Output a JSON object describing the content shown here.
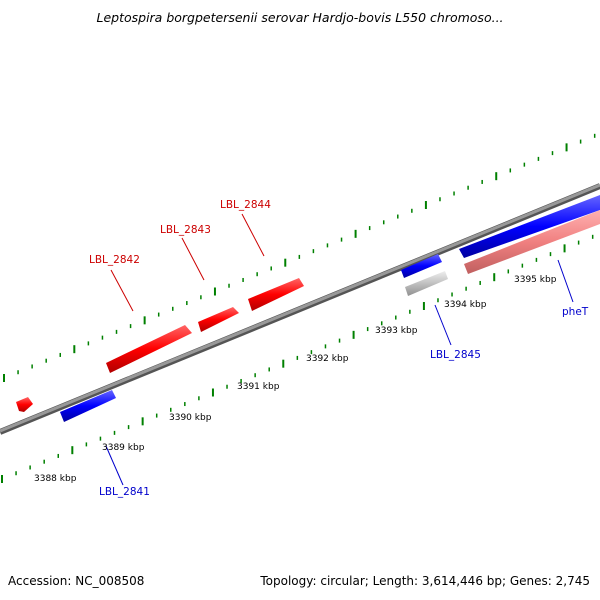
{
  "title": "Leptospira borgpetersenii serovar Hardjo-bovis L550 chromoso...",
  "footer": {
    "accession": "Accession: NC_008508",
    "topology": "Topology: circular; Length: 3,614,446 bp; Genes: 2,745"
  },
  "colors": {
    "forward_gene": "#ff0000",
    "reverse_gene": "#0000ff",
    "forward_pseudo": "#f08080",
    "neutral_gene": "#c0c0c0",
    "forward_label": "#cc0000",
    "reverse_label": "#0000cc",
    "backbone": "#808080",
    "ticks": "#008000"
  },
  "scale_labels": [
    "3388 kbp",
    "3389 kbp",
    "3390 kbp",
    "3391 kbp",
    "3392 kbp",
    "3393 kbp",
    "3394 kbp",
    "3395 kbp"
  ],
  "genes": [
    {
      "label": "LBL_2842",
      "strand": "forward"
    },
    {
      "label": "LBL_2843",
      "strand": "forward"
    },
    {
      "label": "LBL_2844",
      "strand": "forward"
    },
    {
      "label": "LBL_2841",
      "strand": "reverse"
    },
    {
      "label": "LBL_2845",
      "strand": "reverse"
    },
    {
      "label": "pheT",
      "strand": "reverse"
    }
  ]
}
